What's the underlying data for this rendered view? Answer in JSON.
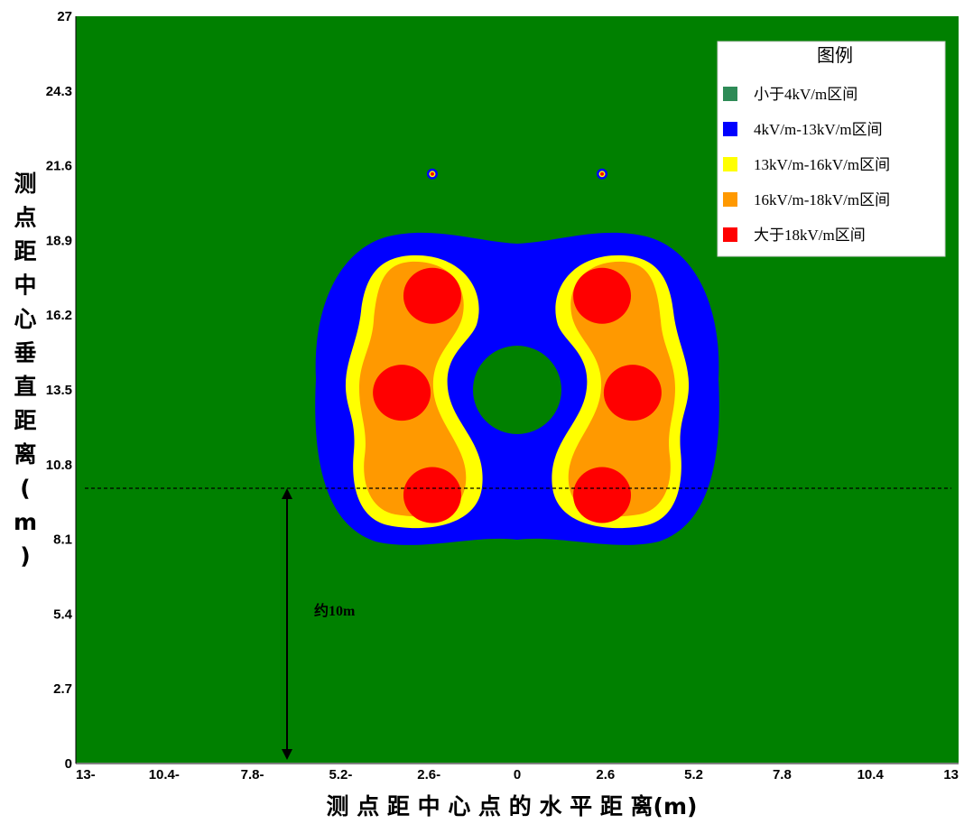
{
  "chart_data": {
    "type": "heatmap",
    "xlabel": "测 点 距 中 心 点 的 水 平 距 离(m)",
    "ylabel": "测点距中心垂直距离(m)",
    "xlim": [
      -13,
      13
    ],
    "ylim": [
      0,
      27
    ],
    "x_ticks": [
      "13-",
      "10.4-",
      "7.8-",
      "5.2-",
      "2.6-",
      "0",
      "2.6",
      "5.2",
      "7.8",
      "10.4",
      "13"
    ],
    "y_ticks": [
      "0",
      "2.7",
      "5.4",
      "8.1",
      "10.8",
      "13.5",
      "16.2",
      "18.9",
      "21.6",
      "24.3",
      "27"
    ],
    "legend": {
      "title": "图例",
      "placement": "top-right",
      "entries": [
        {
          "label": "小于4kV/m区间",
          "color": "#2e8b57"
        },
        {
          "label": "4kV/m-13kV/m区间",
          "color": "#0000ff"
        },
        {
          "label": "13kV/m-16kV/m区间",
          "color": "#ffff00"
        },
        {
          "label": "16kV/m-18kV/m区间",
          "color": "#ff9900"
        },
        {
          "label": "大于18kV/m区间",
          "color": "#ff0000"
        }
      ]
    },
    "background_color": "#008000",
    "field_colors": {
      "blue": "#0000ff",
      "yellow": "#ffff00",
      "orange": "#ff9900",
      "red": "#ff0000",
      "green": "#008000"
    },
    "conductors": [
      {
        "x": -2.5,
        "y": 9.7
      },
      {
        "x": -3.4,
        "y": 13.4
      },
      {
        "x": -2.5,
        "y": 16.9
      },
      {
        "x": 2.5,
        "y": 9.7
      },
      {
        "x": 3.4,
        "y": 13.4
      },
      {
        "x": 2.5,
        "y": 16.9
      }
    ],
    "ground_wires": [
      {
        "x": -2.5,
        "y": 21.3
      },
      {
        "x": 2.5,
        "y": 21.3
      }
    ],
    "reference_line": {
      "y": 9.8,
      "style": "dashed"
    },
    "annotation": {
      "text": "约10m",
      "x": -6.8,
      "y_from": 0,
      "y_to": 9.8
    }
  }
}
